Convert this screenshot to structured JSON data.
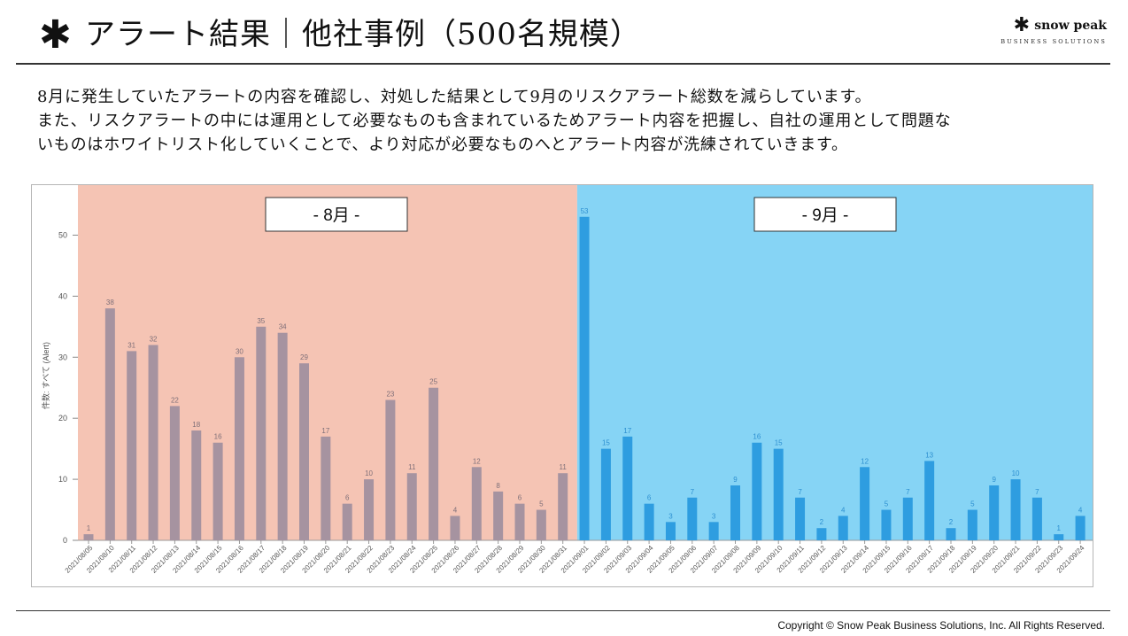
{
  "header": {
    "asterisk": "✱",
    "title": "アラート結果｜他社事例（500名規模）"
  },
  "logo": {
    "mark": "✱",
    "name": "snow peak",
    "sub": "BUSINESS SOLUTIONS"
  },
  "description": {
    "line1": "8月に発生していたアラートの内容を確認し、対処した結果として9月のリスクアラート総数を減らしています。",
    "line2": "また、リスクアラートの中には運用として必要なものも含まれているためアラート内容を把握し、自社の運用として問題な",
    "line3": "いものはホワイトリスト化していくことで、より対応が必要なものへとアラート内容が洗練されていきます。"
  },
  "footer": {
    "copyright": "Copyright © Snow Peak Business Solutions, Inc. All Rights Reserved."
  },
  "chart_data": {
    "type": "bar",
    "ylabel": "件数: すべて (Alert)",
    "xlabel": "",
    "ylim": [
      0,
      55
    ],
    "yticks": [
      0,
      10,
      20,
      30,
      40,
      50
    ],
    "grid": false,
    "regions": [
      {
        "label": "- 8月 -",
        "color": "#f5c4b4",
        "bar_color": "#a693a0",
        "first": "2021/08/05",
        "last": "2021/08/31"
      },
      {
        "label": "- 9月 -",
        "color": "#86d4f5",
        "bar_color": "#2e9de0",
        "first": "2021/09/01",
        "last": "2021/09/24"
      }
    ],
    "categories": [
      "2021/08/05",
      "2021/08/10",
      "2021/08/11",
      "2021/08/12",
      "2021/08/13",
      "2021/08/14",
      "2021/08/15",
      "2021/08/16",
      "2021/08/17",
      "2021/08/18",
      "2021/08/19",
      "2021/08/20",
      "2021/08/21",
      "2021/08/22",
      "2021/08/23",
      "2021/08/24",
      "2021/08/25",
      "2021/08/26",
      "2021/08/27",
      "2021/08/28",
      "2021/08/29",
      "2021/08/30",
      "2021/08/31",
      "2021/09/01",
      "2021/09/02",
      "2021/09/03",
      "2021/09/04",
      "2021/09/05",
      "2021/09/06",
      "2021/09/07",
      "2021/09/08",
      "2021/09/09",
      "2021/09/10",
      "2021/09/11",
      "2021/09/12",
      "2021/09/13",
      "2021/09/14",
      "2021/09/15",
      "2021/09/16",
      "2021/09/17",
      "2021/09/18",
      "2021/09/19",
      "2021/09/20",
      "2021/09/21",
      "2021/09/22",
      "2021/09/23",
      "2021/09/24"
    ],
    "values": [
      1,
      38,
      31,
      32,
      22,
      18,
      16,
      30,
      35,
      34,
      29,
      17,
      6,
      10,
      23,
      11,
      25,
      4,
      12,
      8,
      6,
      5,
      11,
      53,
      15,
      17,
      6,
      3,
      7,
      3,
      9,
      16,
      15,
      7,
      2,
      4,
      12,
      5,
      7,
      13,
      2,
      5,
      9,
      10,
      7,
      1,
      4
    ]
  }
}
